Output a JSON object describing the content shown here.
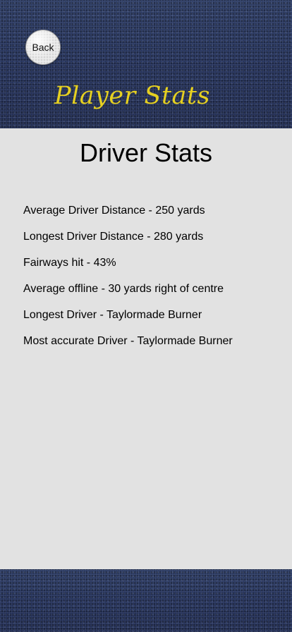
{
  "header": {
    "back_label": "Back",
    "title": "Player Stats"
  },
  "main": {
    "title": "Driver Stats",
    "stats": [
      "Average Driver Distance - 250 yards",
      "Longest Driver Distance - 280 yards",
      "Fairways hit - 43%",
      "Average offline - 30 yards right of centre",
      "Longest Driver - Taylormade Burner",
      "Most accurate Driver - Taylormade Burner"
    ]
  }
}
